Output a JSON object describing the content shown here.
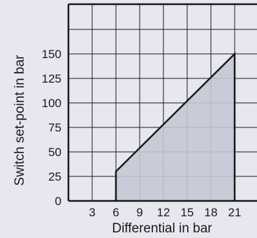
{
  "chart_data": {
    "type": "area",
    "title": "",
    "xlabel": "Differential in bar",
    "ylabel": "Switch set-point in bar",
    "xlim": [
      0,
      24
    ],
    "ylim": [
      0,
      175
    ],
    "x_ticks": [
      3,
      6,
      9,
      12,
      15,
      18,
      21
    ],
    "y_ticks": [
      0,
      25,
      50,
      75,
      100,
      125,
      150
    ],
    "x_tick_labels": [
      "3",
      "6",
      "9",
      "12",
      "15",
      "18",
      "21"
    ],
    "y_tick_labels": [
      "0",
      "25",
      "50",
      "75",
      "100",
      "125",
      "150"
    ],
    "grid": true,
    "series": [
      {
        "points": [
          {
            "x": 6,
            "y": 0
          },
          {
            "x": 6,
            "y": 30
          },
          {
            "x": 21,
            "y": 150
          },
          {
            "x": 21,
            "y": 0
          }
        ]
      }
    ],
    "colors": {
      "background": "#e7e8ef",
      "plot_background": "#e7e8ef",
      "fill": "#c5c8d5",
      "line": "#1a1a1a",
      "grid": "#1a1a1a"
    }
  }
}
